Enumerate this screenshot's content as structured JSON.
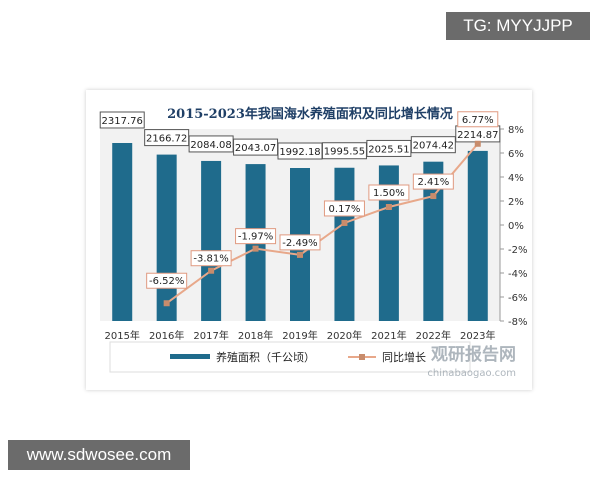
{
  "watermarks": {
    "top": "TG: MYYJJPP",
    "bottom": "www.sdwosee.com",
    "logo": "观研报告网",
    "logo_sub": "chinabaogao.com"
  },
  "colors": {
    "bar": "#1f6b8c",
    "line": "#e8a88a",
    "marker": "#c88c6c"
  },
  "chart_data": {
    "type": "bar+line",
    "title": "2015-2023年我国海水养殖面积及同比增长情况",
    "categories": [
      "2015年",
      "2016年",
      "2017年",
      "2018年",
      "2019年",
      "2020年",
      "2021年",
      "2022年",
      "2023年"
    ],
    "series": [
      {
        "name": "养殖面积（千公顷）",
        "type": "bar",
        "axis": "left",
        "values": [
          2317.76,
          2166.72,
          2084.08,
          2043.07,
          1992.18,
          1995.55,
          2025.51,
          2074.42,
          2214.87
        ],
        "labels": [
          "2317.76",
          "2166.72",
          "2084.08",
          "2043.07",
          "1992.18",
          "1995.55",
          "2025.51",
          "2074.42",
          "2214.87"
        ]
      },
      {
        "name": "同比增长",
        "type": "line",
        "axis": "right",
        "values": [
          null,
          -6.52,
          -3.81,
          -1.97,
          -2.49,
          0.17,
          1.5,
          2.41,
          6.77
        ],
        "labels": [
          "",
          "-6.52%",
          "-3.81%",
          "-1.97%",
          "-2.49%",
          "0.17%",
          "1.50%",
          "2.41%",
          "6.77%"
        ]
      }
    ],
    "y_left": {
      "range": [
        0,
        2500
      ],
      "ticks": [
        "0",
        "500",
        "1000",
        "1500",
        "2000",
        "2500"
      ]
    },
    "y_right": {
      "range": [
        -8,
        8
      ],
      "ticks": [
        "-8%",
        "-6%",
        "-4%",
        "-2%",
        "0%",
        "2%",
        "4%",
        "6%",
        "8%"
      ]
    },
    "legend": "bottom"
  }
}
